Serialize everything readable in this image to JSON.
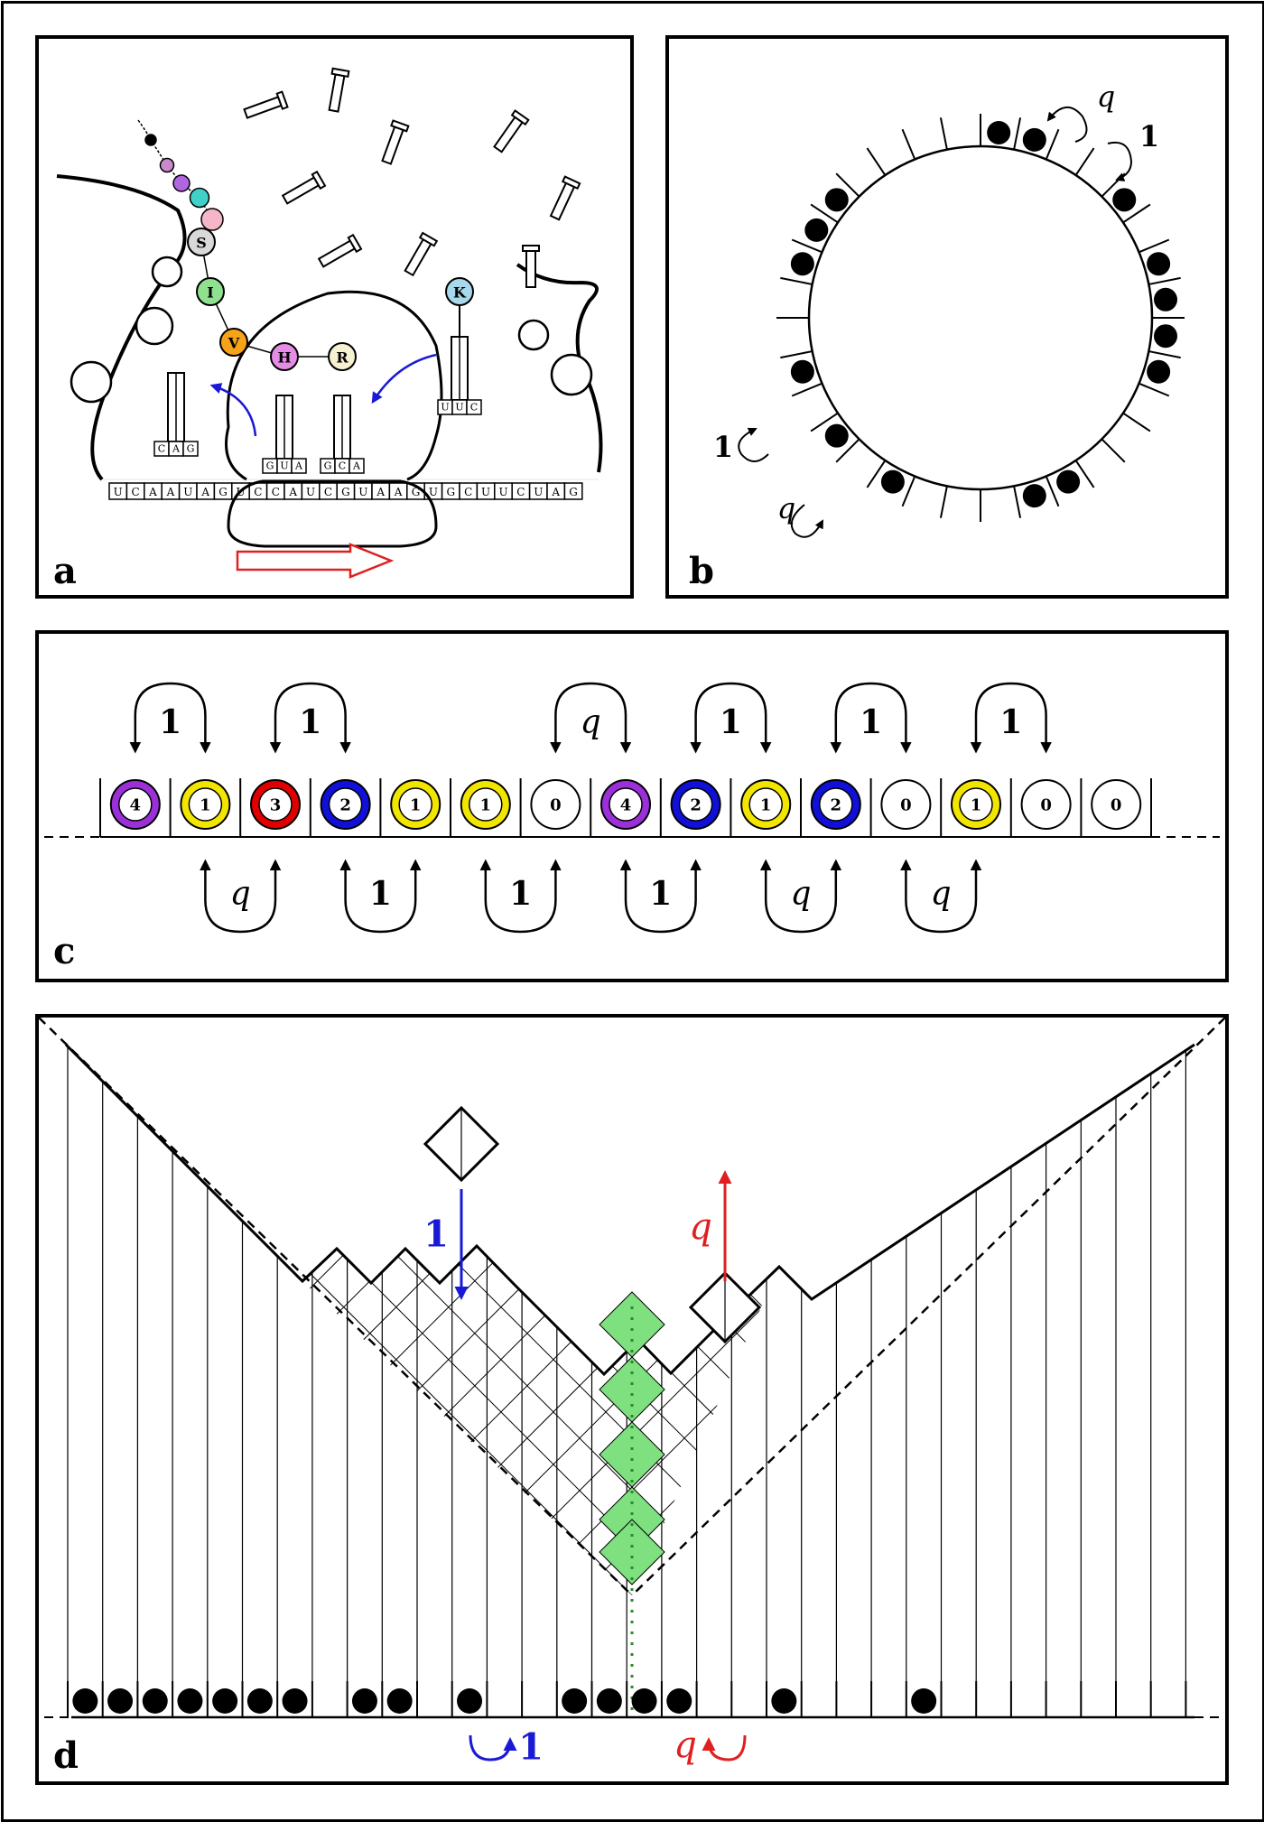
{
  "panels": {
    "a": {
      "label": "a"
    },
    "b": {
      "label": "b"
    },
    "c": {
      "label": "c"
    },
    "d": {
      "label": "d"
    }
  },
  "panel_a": {
    "mrna": "UCAAUAGUCCAUCGUAAGUGCUUCUAG",
    "chain": [
      "S",
      "I",
      "V",
      "H",
      "R"
    ],
    "chain_colors": [
      "#d9d9d9",
      "#8fe08f",
      "#f5a31a",
      "#e58ce5",
      "#f6f1d0"
    ],
    "incoming_amino": "K",
    "incoming_amino_color": "#a8d8ec",
    "trna_anticodons": [
      "CAG",
      "GUA",
      "GCA",
      "UUC"
    ],
    "direction_arrow_color": "#e02020"
  },
  "panel_b": {
    "rate_1": "1",
    "rate_q": "q",
    "num_sites": 32,
    "occupied": [
      0,
      1,
      4,
      6,
      7,
      8,
      9,
      13,
      14,
      18,
      20,
      22,
      25,
      26,
      27
    ]
  },
  "panel_c": {
    "sites": [
      {
        "v": "4",
        "ring": "#9b30d9"
      },
      {
        "v": "1",
        "ring": "#f2e600"
      },
      {
        "v": "3",
        "ring": "#e00000"
      },
      {
        "v": "2",
        "ring": "#1010d8"
      },
      {
        "v": "1",
        "ring": "#f2e600"
      },
      {
        "v": "1",
        "ring": "#f2e600"
      },
      {
        "v": "0",
        "ring": "none"
      },
      {
        "v": "4",
        "ring": "#9b30d9"
      },
      {
        "v": "2",
        "ring": "#1010d8"
      },
      {
        "v": "1",
        "ring": "#f2e600"
      },
      {
        "v": "2",
        "ring": "#1010d8"
      },
      {
        "v": "0",
        "ring": "none"
      },
      {
        "v": "1",
        "ring": "#f2e600"
      },
      {
        "v": "0",
        "ring": "none"
      },
      {
        "v": "0",
        "ring": "none"
      }
    ],
    "top_rates": [
      {
        "gap": 0,
        "label": "1"
      },
      {
        "gap": 2,
        "label": "1"
      },
      {
        "gap": 6,
        "label": "q"
      },
      {
        "gap": 8,
        "label": "1"
      },
      {
        "gap": 10,
        "label": "1"
      },
      {
        "gap": 12,
        "label": "1"
      }
    ],
    "bottom_rates": [
      {
        "gap": 1,
        "label": "q"
      },
      {
        "gap": 3,
        "label": "1"
      },
      {
        "gap": 5,
        "label": "1"
      },
      {
        "gap": 7,
        "label": "1"
      },
      {
        "gap": 9,
        "label": "q"
      },
      {
        "gap": 11,
        "label": "q"
      }
    ]
  },
  "panel_d": {
    "rate_down": "1",
    "rate_up": "q",
    "rate_bottom_1": "1",
    "rate_bottom_q": "q",
    "color_1": "#1a1ad6",
    "color_q": "#e02020",
    "highlight_color": "#7ee07e",
    "sites": [
      1,
      1,
      1,
      1,
      1,
      1,
      1,
      0,
      1,
      1,
      0,
      1,
      0,
      0,
      1,
      1,
      1,
      1,
      0,
      0,
      1,
      0,
      0,
      0,
      1,
      0,
      0,
      0,
      0,
      0,
      0,
      0,
      0
    ]
  }
}
